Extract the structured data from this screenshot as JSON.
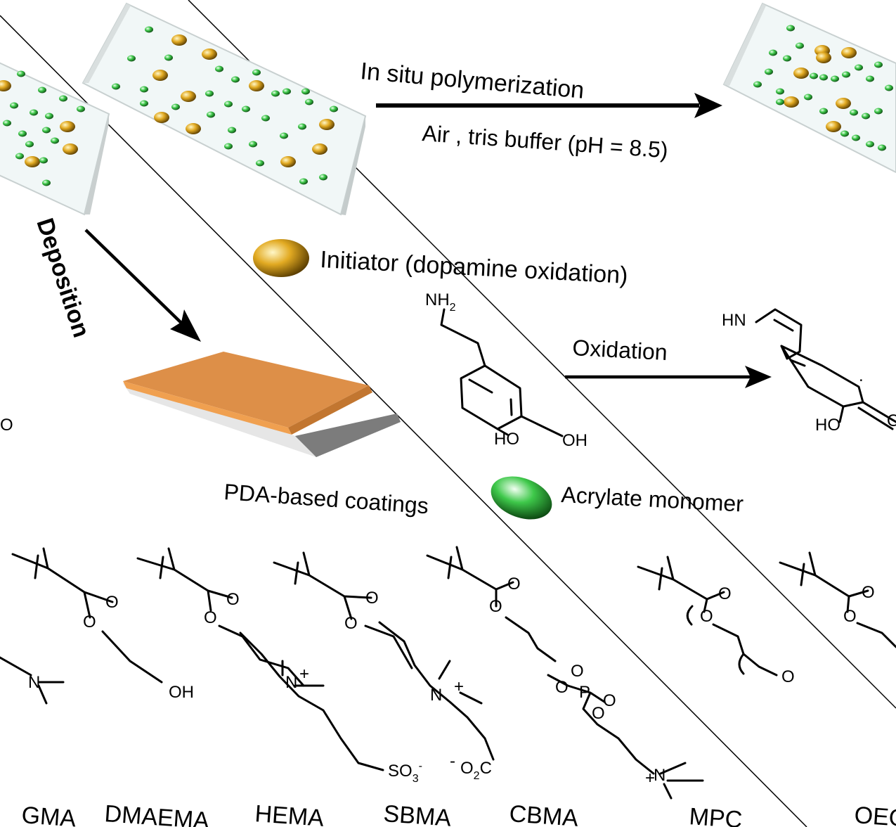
{
  "labels": {
    "in_situ": "In situ polymerization",
    "conditions": "Air , tris buffer (pH = 8.5)",
    "deposition": "Deposition",
    "initiator": "Initiator (dopamine oxidation)",
    "oxidation": "Oxidation",
    "pda": "PDA-based coatings",
    "acrylate": "Acrylate monomer"
  },
  "dopamine": {
    "nh2": "NH",
    "nh2_sub": "2",
    "ho": "HO",
    "oh": "OH"
  },
  "oxidized": {
    "hn": "HN",
    "ho": "HO",
    "o": "O"
  },
  "monomers": {
    "names": [
      "GMA",
      "DMAEMA",
      "HEMA",
      "SBMA",
      "CBMA",
      "MPC",
      "OEG"
    ],
    "atoms": {
      "o": "O",
      "n": "N",
      "plus": "+",
      "minus": "-",
      "oh": "OH",
      "p": "P",
      "so3": "SO",
      "so3_sub": "3",
      "o2c": "O",
      "o2c_sub": "2",
      "c": "C"
    }
  },
  "colors": {
    "initiator": "#d9a21b",
    "monomer": "#3ec84a",
    "coating_top": "#e09048",
    "coating_side": "#7c7c7c"
  }
}
